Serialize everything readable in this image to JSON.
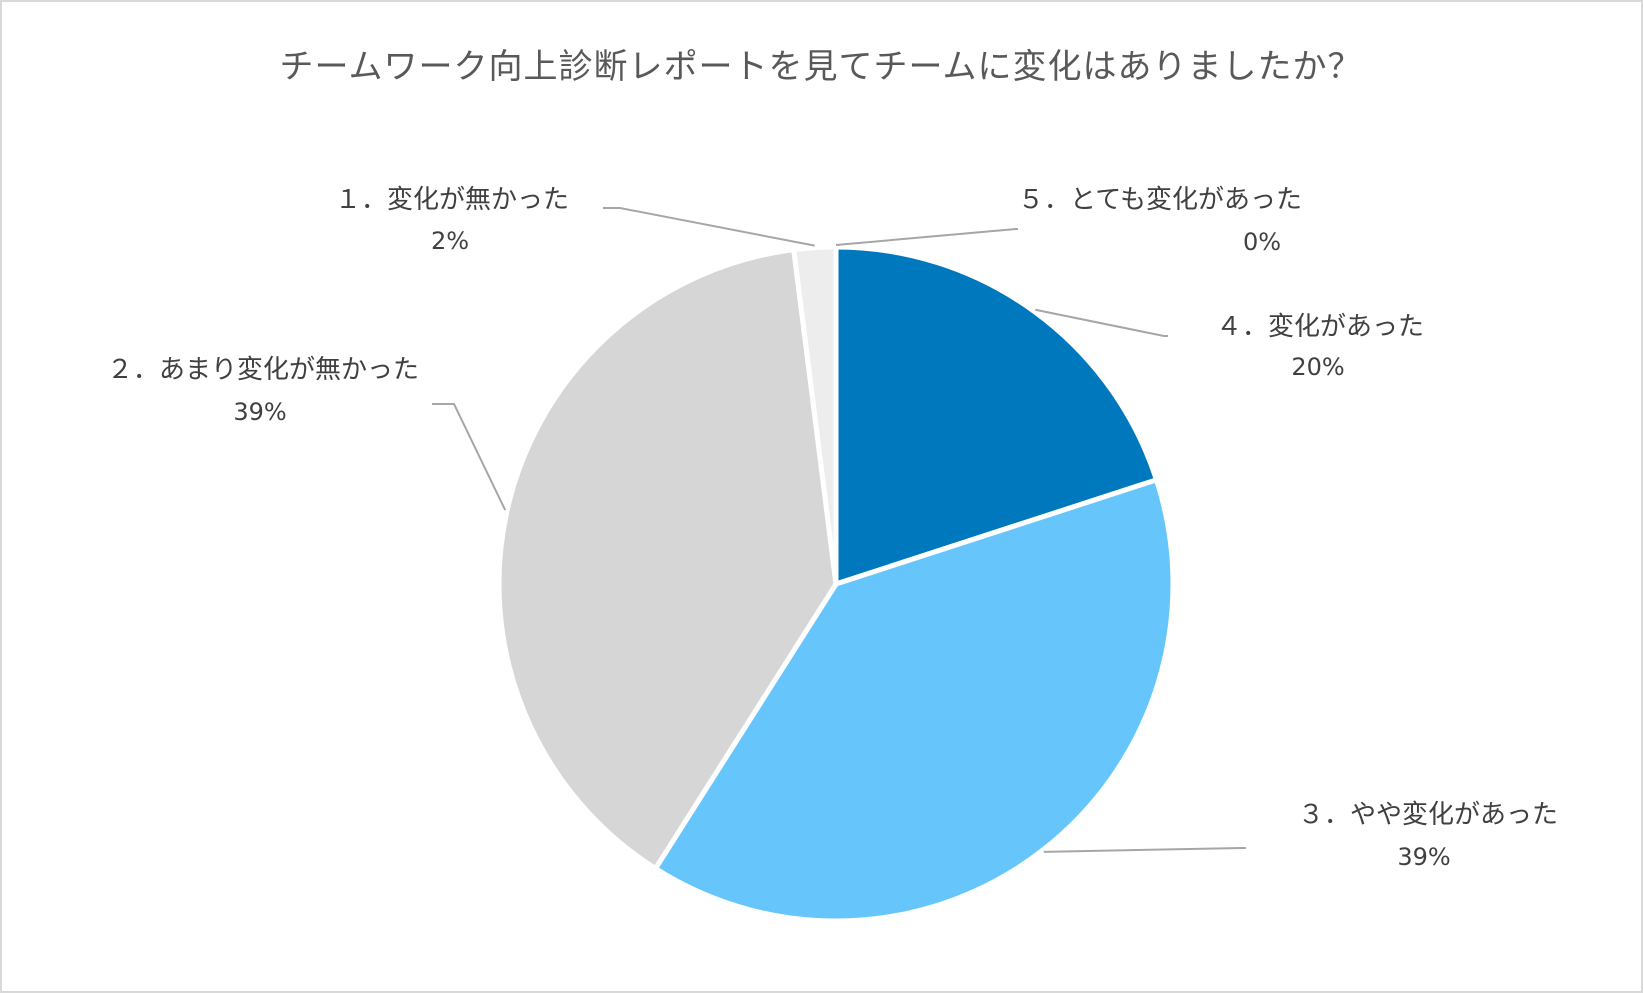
{
  "chart_data": {
    "type": "pie",
    "title": "チームワーク向上診断レポートを見てチームに変化はありましたか？",
    "slices": [
      {
        "label": "５．とても変化があった",
        "percent_label": "0%",
        "value": 0,
        "color": "#1F4E79"
      },
      {
        "label": "４．変化があった",
        "percent_label": "20%",
        "value": 20,
        "color": "#0078BE"
      },
      {
        "label": "３．やや変化があった",
        "percent_label": "39%",
        "value": 39,
        "color": "#66C6FC"
      },
      {
        "label": "２．あまり変化が無かった",
        "percent_label": "39%",
        "value": 39,
        "color": "#D6D6D6"
      },
      {
        "label": "１．変化が無かった",
        "percent_label": "2%",
        "value": 2,
        "color": "#EDEDED"
      }
    ],
    "start_angle_deg": 0,
    "direction": "clockwise",
    "legend": "none",
    "leader_line_color": "#A6A6A6"
  }
}
